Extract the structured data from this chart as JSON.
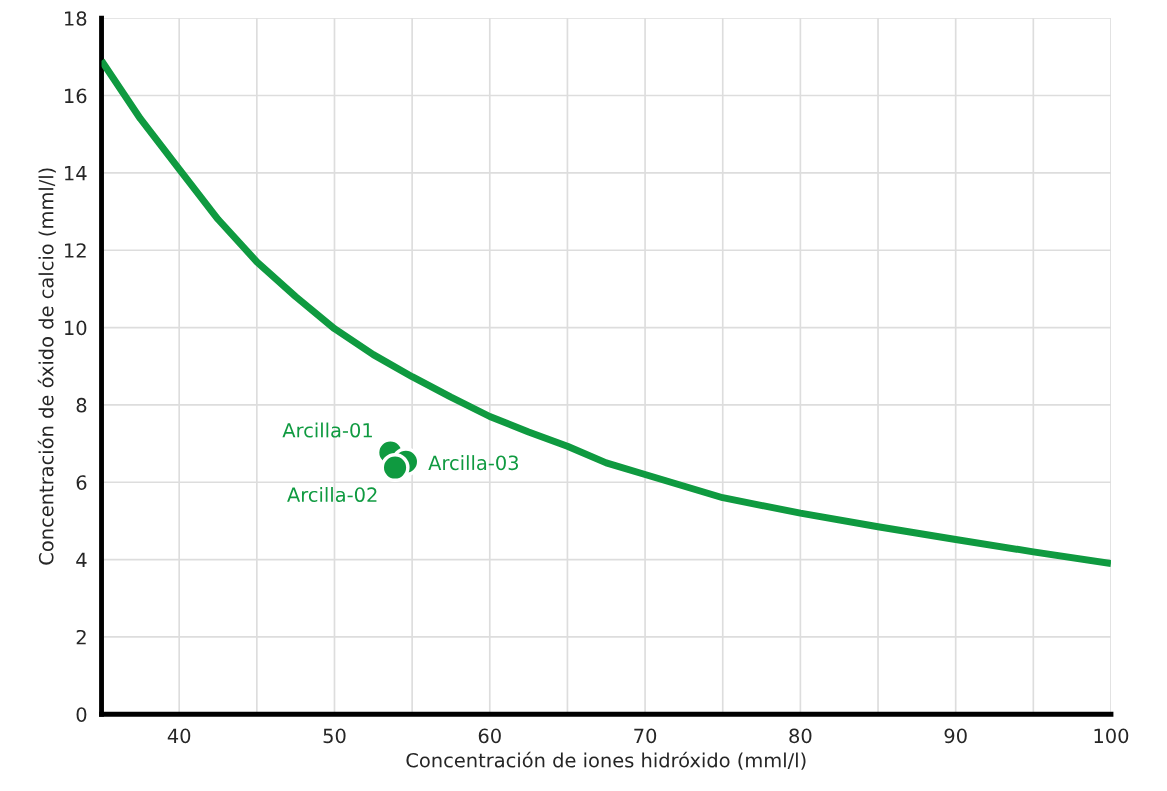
{
  "chart_data": {
    "type": "scatter",
    "xlabel": "Concentración de iones hidróxido (mml/l)",
    "ylabel": "Concentración de óxido de calcio (mml/l)",
    "xlim": [
      35,
      100
    ],
    "ylim": [
      0,
      18
    ],
    "xticks": [
      40,
      {
        "value": 45,
        "label": null
      },
      50,
      {
        "value": 55,
        "label": null
      },
      60,
      {
        "value": 65,
        "label": null
      },
      70,
      {
        "value": 75,
        "label": null
      },
      80,
      {
        "value": 85,
        "label": null
      },
      90,
      {
        "value": 95,
        "label": null
      },
      100
    ],
    "yticks": [
      0,
      2,
      4,
      6,
      8,
      10,
      12,
      14,
      16,
      18
    ],
    "grid": true,
    "series": [
      {
        "type": "line",
        "color": "#0f9a40",
        "marker": "none",
        "line_style": "solid",
        "x": [
          35,
          37.5,
          40,
          42.5,
          45,
          47.5,
          50,
          52.5,
          55,
          57.5,
          60,
          62.5,
          65,
          67.5,
          70,
          75,
          80,
          85,
          90,
          95,
          100
        ],
        "values": [
          16.9,
          15.4,
          14.1,
          12.8,
          11.7,
          10.8,
          9.97,
          9.3,
          8.73,
          8.2,
          7.7,
          7.3,
          6.93,
          6.5,
          6.2,
          5.6,
          5.2,
          4.85,
          4.52,
          4.2,
          3.9
        ]
      },
      {
        "name": "Arcilla-01",
        "color": "#0f9a40",
        "marker": "circle",
        "x": [
          53.6
        ],
        "values": [
          6.77
        ]
      },
      {
        "name": "Arcilla-03",
        "color": "#0f9a40",
        "marker": "circle",
        "x": [
          54.6
        ],
        "values": [
          6.53
        ]
      },
      {
        "name": "Arcilla-02",
        "color": "#0f9a40",
        "marker": "circle",
        "x": [
          53.9
        ],
        "values": [
          6.38
        ]
      }
    ]
  }
}
